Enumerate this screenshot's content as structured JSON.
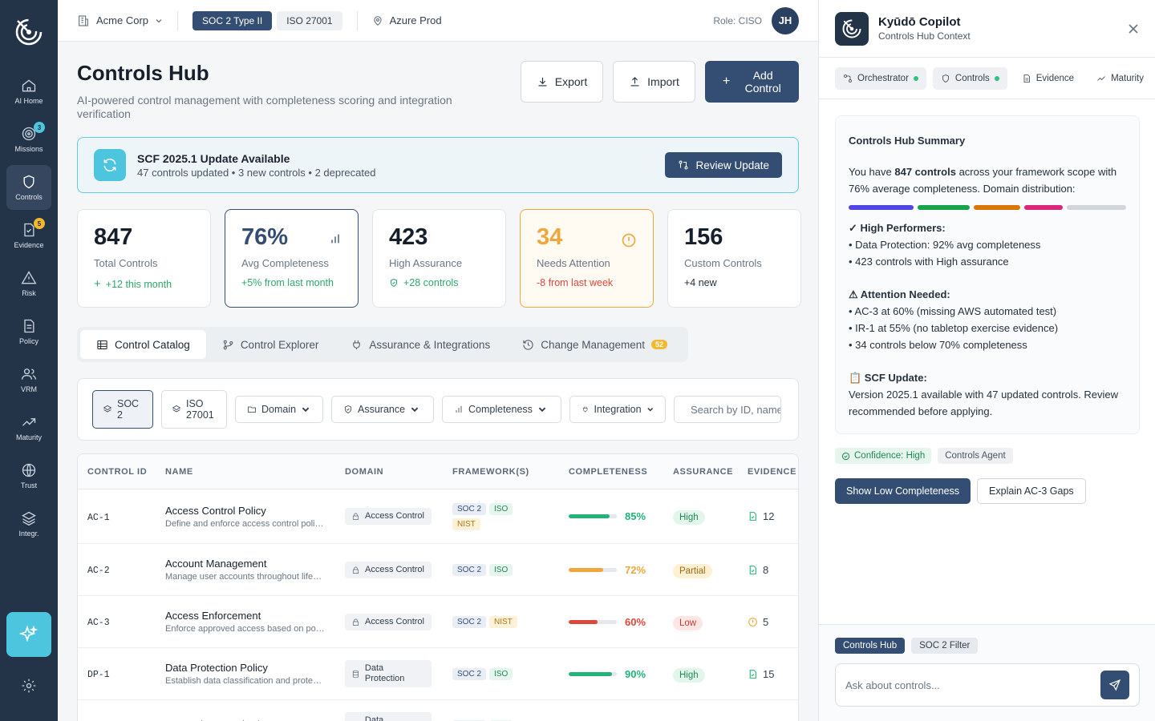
{
  "sidebar": {
    "items": [
      {
        "label": "AI Home",
        "icon": "home-icon"
      },
      {
        "label": "Missions",
        "icon": "target-icon",
        "badge": "3"
      },
      {
        "label": "Controls",
        "icon": "shield-icon"
      },
      {
        "label": "Evidence",
        "icon": "document-check-icon",
        "badge": "5"
      },
      {
        "label": "Risk",
        "icon": "warning-icon"
      },
      {
        "label": "Policy",
        "icon": "policy-icon"
      },
      {
        "label": "VRM",
        "icon": "users-icon"
      },
      {
        "label": "Maturity",
        "icon": "trending-icon"
      },
      {
        "label": "Trust",
        "icon": "globe-icon"
      },
      {
        "label": "Integr.",
        "icon": "layers-icon"
      }
    ],
    "active_index": 2,
    "badge_colors": {
      "missions": "#4ec5df",
      "evidence": "#f4b82e"
    }
  },
  "topbar": {
    "org": "Acme Corp",
    "framework_active": "SOC 2 Type II",
    "framework_other": "ISO 27001",
    "environment": "Azure Prod",
    "role": "Role: CISO",
    "avatar_initials": "JH"
  },
  "header": {
    "title": "Controls Hub",
    "subtitle": "AI-powered control management with completeness scoring and integration verification",
    "export_label": "Export",
    "import_label": "Import",
    "add_label": "Add Control"
  },
  "banner": {
    "title": "SCF 2025.1 Update Available",
    "subtitle": "47 controls updated • 3 new controls • 2 deprecated",
    "button": "Review Update"
  },
  "stats": [
    {
      "value": "847",
      "label": "Total Controls",
      "delta": "+12 this month",
      "delta_color": "#2ea86a"
    },
    {
      "value": "76%",
      "label": "Avg Completeness",
      "delta": "+5% from last month",
      "delta_color": "#2ea86a"
    },
    {
      "value": "423",
      "label": "High Assurance",
      "delta": "+28 controls",
      "delta_color": "#2ea86a"
    },
    {
      "value": "34",
      "label": "Needs Attention",
      "delta": "-8 from last week",
      "delta_color": "#e0473b"
    },
    {
      "value": "156",
      "label": "Custom Controls",
      "delta": "+4 new",
      "delta_color": "#26313e"
    }
  ],
  "tabs": [
    {
      "label": "Control Catalog"
    },
    {
      "label": "Control Explorer"
    },
    {
      "label": "Assurance & Integrations"
    },
    {
      "label": "Change Management",
      "badge": "52"
    }
  ],
  "filters": {
    "soc": "SOC 2",
    "iso": "ISO 27001",
    "domain": "Domain",
    "assurance": "Assurance",
    "completeness": "Completeness",
    "integration": "Integration",
    "search_placeholder": "Search by ID, name..."
  },
  "table": {
    "headers": [
      "CONTROL ID",
      "NAME",
      "DOMAIN",
      "FRAMEWORK(S)",
      "COMPLETENESS",
      "ASSURANCE",
      "EVIDENCE"
    ],
    "rows": [
      {
        "id": "AC-1",
        "name": "Access Control Policy",
        "desc": "Define and enforce access control policies across the organization",
        "domain": "Access Control",
        "frameworks": [
          "SOC 2",
          "ISO",
          "NIST"
        ],
        "completeness": 85,
        "completeness_label": "85%",
        "assurance": "High",
        "evidence": "12",
        "evidence_icon": "file-check-icon"
      },
      {
        "id": "AC-2",
        "name": "Account Management",
        "desc": "Manage user accounts throughout lifecycle",
        "domain": "Access Control",
        "frameworks": [
          "SOC 2",
          "ISO"
        ],
        "completeness": 72,
        "completeness_label": "72%",
        "assurance": "Partial",
        "evidence": "8",
        "evidence_icon": "file-check-icon"
      },
      {
        "id": "AC-3",
        "name": "Access Enforcement",
        "desc": "Enforce approved access based on policy",
        "domain": "Access Control",
        "frameworks": [
          "SOC 2",
          "NIST"
        ],
        "completeness": 60,
        "completeness_label": "60%",
        "assurance": "Low",
        "evidence": "5",
        "evidence_icon": "alert-circle-icon"
      },
      {
        "id": "DP-1",
        "name": "Data Protection Policy",
        "desc": "Establish data classification and protection requirements",
        "domain": "Data Protection",
        "frameworks": [
          "SOC 2",
          "ISO"
        ],
        "completeness": 90,
        "completeness_label": "90%",
        "assurance": "High",
        "evidence": "15",
        "evidence_icon": "file-check-icon"
      },
      {
        "id": "",
        "name": "Encryption Standards",
        "desc": "",
        "domain": "Data Protection",
        "frameworks": [
          "SOC 2",
          "ISO"
        ],
        "completeness": 0,
        "completeness_label": "",
        "assurance": "",
        "evidence": "",
        "evidence_icon": ""
      }
    ]
  },
  "copilot": {
    "title": "Kyūdō Copilot",
    "subtitle": "Controls Hub Context",
    "agents": [
      {
        "label": "Orchestrator",
        "active": true
      },
      {
        "label": "Controls",
        "active": true
      },
      {
        "label": "Evidence",
        "active": false
      },
      {
        "label": "Maturity",
        "active": false
      }
    ],
    "summary": {
      "title": "Controls Hub Summary",
      "intro_pre": "You have ",
      "intro_bold": "847 controls",
      "intro_post": " across your framework scope with 76% average completeness. Domain distribution:",
      "distribution_colors": [
        "#4f46e5",
        "#16a34a",
        "#d97706",
        "#db2777",
        "#d1d5db"
      ],
      "high_title": "✓ High Performers:",
      "high_items": [
        "• Data Protection: 92% avg completeness",
        "• 423 controls with High assurance"
      ],
      "attention_title": "⚠ Attention Needed:",
      "attention_items": [
        "• AC-3 at 60% (missing AWS automated test)",
        "• IR-1 at 55% (no tabletop exercise evidence)",
        "• 34 controls below 70% completeness"
      ],
      "scf_title": "📋 SCF Update:",
      "scf_text": "Version 2025.1 available with 47 updated controls. Review recommended before applying."
    },
    "confidence": "Confidence: High",
    "agent_tag": "Controls Agent",
    "action_primary": "Show Low Completeness",
    "action_secondary": "Explain AC-3 Gaps",
    "context_tags": [
      "Controls Hub",
      "SOC 2 Filter"
    ],
    "input_placeholder": "Ask about controls..."
  }
}
